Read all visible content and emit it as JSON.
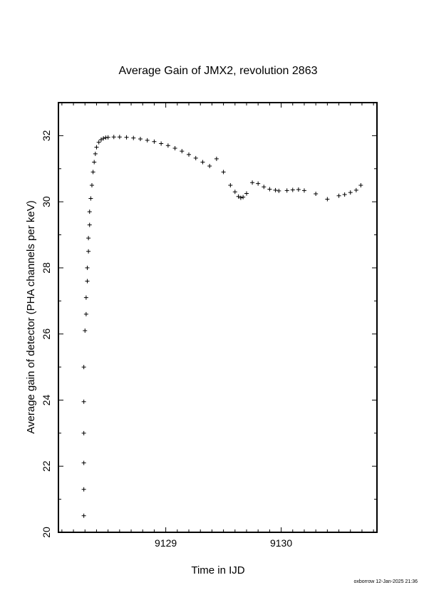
{
  "chart_data": {
    "type": "scatter",
    "title": "Average Gain of JMX2, revolution 2863",
    "xlabel": "Time in IJD",
    "ylabel": "Average gain of detector (PHA channels per keV)",
    "xlim": [
      9128.07,
      9130.83
    ],
    "ylim": [
      20,
      33
    ],
    "xticks": [
      9129,
      9130
    ],
    "yticks": [
      20,
      22,
      24,
      26,
      28,
      30,
      32
    ],
    "marker": "+",
    "color": "#000000",
    "grid": false,
    "series": [
      {
        "values_x": [
          9128.29,
          9128.29,
          9128.29,
          9128.29,
          9128.29,
          9128.29,
          9128.3,
          9128.31,
          9128.31,
          9128.32,
          9128.32,
          9128.33,
          9128.33,
          9128.34,
          9128.34,
          9128.35,
          9128.36,
          9128.37,
          9128.38,
          9128.39,
          9128.4,
          9128.42,
          9128.44,
          9128.46,
          9128.48,
          9128.5,
          9128.55,
          9128.6,
          9128.66,
          9128.72,
          9128.78,
          9128.84,
          9128.9,
          9128.96,
          9129.02,
          9129.08,
          9129.14,
          9129.2,
          9129.26,
          9129.32,
          9129.38,
          9129.44,
          9129.5,
          9129.56,
          9129.6,
          9129.63,
          9129.65,
          9129.67,
          9129.7,
          9129.75,
          9129.8,
          9129.85,
          9129.9,
          9129.95,
          9129.98,
          9130.05,
          9130.1,
          9130.15,
          9130.2,
          9130.3,
          9130.4,
          9130.5,
          9130.55,
          9130.6,
          9130.65,
          9130.69
        ],
        "values_y": [
          20.5,
          21.3,
          22.1,
          23.0,
          23.95,
          25.0,
          26.1,
          26.6,
          27.1,
          27.6,
          28.0,
          28.5,
          28.9,
          29.3,
          29.7,
          30.1,
          30.5,
          30.9,
          31.2,
          31.45,
          31.65,
          31.8,
          31.88,
          31.92,
          31.94,
          31.95,
          31.96,
          31.96,
          31.95,
          31.93,
          31.9,
          31.86,
          31.82,
          31.76,
          31.7,
          31.62,
          31.53,
          31.43,
          31.32,
          31.2,
          31.08,
          31.3,
          30.9,
          30.5,
          30.3,
          30.16,
          30.12,
          30.14,
          30.25,
          30.58,
          30.55,
          30.45,
          30.38,
          30.35,
          30.33,
          30.34,
          30.36,
          30.37,
          30.34,
          30.24,
          30.08,
          30.18,
          30.22,
          30.28,
          30.35,
          30.5
        ]
      }
    ]
  },
  "footer": {
    "text": "oxborrow 12-Jan-2025 21:36"
  }
}
